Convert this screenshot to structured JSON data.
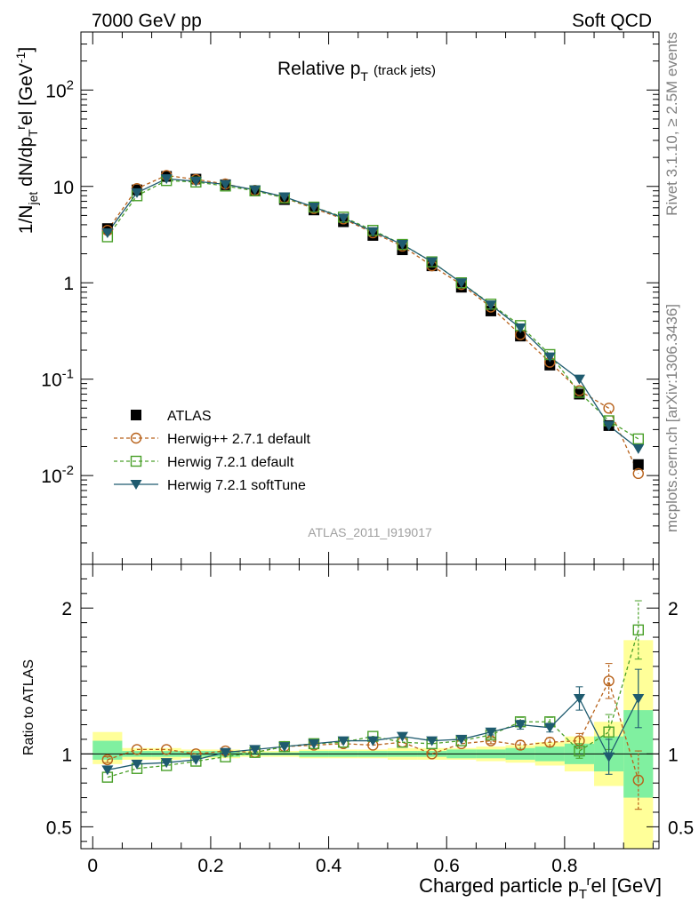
{
  "header": {
    "left": "7000 GeV pp",
    "right": "Soft QCD"
  },
  "side_labels": {
    "rivet": "Rivet 3.1.10, ≥ 2.5M events",
    "mcplots": "mcplots.cern.ch [arXiv:1306.3436]"
  },
  "chart_data": [
    {
      "type": "line",
      "title": "Relative p_T (track jets)",
      "title_main": "Relative p",
      "title_sub": "T",
      "title_suffix": "(track jets)",
      "ylabel": "1/N_jet dN/dp_T^rel [GeV^-1]",
      "xlabel": "Charged particle p_T^rel [GeV]",
      "analysis_id": "ATLAS_2011_I919017",
      "yscale": "log",
      "ylim": [
        0.0012,
        400
      ],
      "xlim": [
        -0.02,
        0.96
      ],
      "y_tick_labels": [
        "10^-2",
        "10^-1",
        "1",
        "10",
        "10^2"
      ],
      "legend_placement": "lower-left",
      "x": [
        0.025,
        0.075,
        0.125,
        0.175,
        0.225,
        0.275,
        0.325,
        0.375,
        0.425,
        0.475,
        0.525,
        0.575,
        0.625,
        0.675,
        0.725,
        0.775,
        0.825,
        0.875,
        0.925
      ],
      "series": [
        {
          "name": "ATLAS",
          "color": "#000000",
          "marker": "filled-square",
          "values": [
            3.65,
            9.2,
            12.7,
            11.9,
            10.4,
            9.0,
            7.3,
            5.7,
            4.3,
            3.1,
            2.2,
            1.5,
            0.9,
            0.51,
            0.28,
            0.14,
            0.07,
            0.033,
            0.013
          ]
        },
        {
          "name": "Herwig++ 2.7.1 default",
          "color": "#b8621b",
          "marker": "open-circle",
          "dash": true,
          "values": [
            3.5,
            9.5,
            13.0,
            11.8,
            10.6,
            9.1,
            7.6,
            5.9,
            4.6,
            3.3,
            2.4,
            1.5,
            0.96,
            0.56,
            0.29,
            0.15,
            0.076,
            0.05,
            0.0105
          ]
        },
        {
          "name": "Herwig 7.2.1 default",
          "color": "#4aa02a",
          "marker": "open-square",
          "dash": true,
          "values": [
            3.0,
            8.0,
            11.5,
            11.1,
            10.1,
            9.0,
            7.6,
            6.1,
            4.8,
            3.5,
            2.5,
            1.65,
            1.0,
            0.6,
            0.36,
            0.18,
            0.073,
            0.037,
            0.024
          ]
        },
        {
          "name": "Herwig 7.2.1 softTune",
          "color": "#1f5b6f",
          "marker": "filled-triangle-down",
          "dash": false,
          "values": [
            3.3,
            8.6,
            12.0,
            11.3,
            10.5,
            9.2,
            7.8,
            6.1,
            4.7,
            3.4,
            2.5,
            1.65,
            1.0,
            0.59,
            0.34,
            0.17,
            0.1,
            0.033,
            0.019
          ]
        }
      ]
    },
    {
      "type": "line",
      "ylabel": "Ratio to ATLAS",
      "xlabel": "Charged particle p_T^rel [GeV]",
      "ylim": [
        0.35,
        2.3
      ],
      "xlim": [
        -0.02,
        0.96
      ],
      "x_ticks": [
        0,
        0.2,
        0.4,
        0.6,
        0.8
      ],
      "x_tick_labels": [
        "0",
        "0.2",
        "0.4",
        "0.6",
        "0.8"
      ],
      "y_ticks": [
        0.5,
        1,
        2
      ],
      "y_tick_labels": [
        "0.5",
        "1",
        "2"
      ],
      "x": [
        0.025,
        0.075,
        0.125,
        0.175,
        0.225,
        0.275,
        0.325,
        0.375,
        0.425,
        0.475,
        0.525,
        0.575,
        0.625,
        0.675,
        0.725,
        0.775,
        0.825,
        0.875,
        0.925
      ],
      "bin_edges": [
        0.0,
        0.05,
        0.1,
        0.15,
        0.2,
        0.25,
        0.3,
        0.35,
        0.4,
        0.45,
        0.5,
        0.55,
        0.6,
        0.65,
        0.7,
        0.75,
        0.8,
        0.85,
        0.9,
        0.95
      ],
      "band_total": [
        [
          0.93,
          1.15
        ],
        [
          0.96,
          1.04
        ],
        [
          0.96,
          1.04
        ],
        [
          0.97,
          1.03
        ],
        [
          0.97,
          1.03
        ],
        [
          0.98,
          1.02
        ],
        [
          0.98,
          1.02
        ],
        [
          0.97,
          1.03
        ],
        [
          0.97,
          1.03
        ],
        [
          0.97,
          1.03
        ],
        [
          0.96,
          1.04
        ],
        [
          0.96,
          1.04
        ],
        [
          0.96,
          1.04
        ],
        [
          0.95,
          1.05
        ],
        [
          0.94,
          1.06
        ],
        [
          0.92,
          1.08
        ],
        [
          0.88,
          1.12
        ],
        [
          0.78,
          1.22
        ],
        [
          0.35,
          1.78
        ]
      ],
      "band_stat": [
        [
          0.96,
          1.09
        ],
        [
          0.98,
          1.02
        ],
        [
          0.98,
          1.02
        ],
        [
          0.98,
          1.02
        ],
        [
          0.98,
          1.02
        ],
        [
          0.99,
          1.01
        ],
        [
          0.99,
          1.01
        ],
        [
          0.98,
          1.02
        ],
        [
          0.98,
          1.02
        ],
        [
          0.98,
          1.02
        ],
        [
          0.98,
          1.02
        ],
        [
          0.98,
          1.02
        ],
        [
          0.97,
          1.03
        ],
        [
          0.97,
          1.03
        ],
        [
          0.96,
          1.04
        ],
        [
          0.95,
          1.05
        ],
        [
          0.93,
          1.07
        ],
        [
          0.88,
          1.12
        ],
        [
          0.7,
          1.3
        ]
      ],
      "series": [
        {
          "name": "Herwig++ 2.7.1 default",
          "color": "#b8621b",
          "marker": "open-circle",
          "dash": true,
          "values": [
            0.96,
            1.03,
            1.03,
            1.0,
            1.02,
            1.01,
            1.05,
            1.06,
            1.07,
            1.06,
            1.08,
            1.0,
            1.07,
            1.09,
            1.06,
            1.08,
            1.09,
            1.5,
            0.82
          ],
          "err": [
            0.02,
            0.01,
            0.01,
            0.01,
            0.01,
            0.01,
            0.01,
            0.01,
            0.01,
            0.01,
            0.01,
            0.01,
            0.01,
            0.02,
            0.03,
            0.03,
            0.05,
            0.12,
            0.2
          ]
        },
        {
          "name": "Herwig 7.2.1 default",
          "color": "#4aa02a",
          "marker": "open-square",
          "dash": true,
          "values": [
            0.84,
            0.9,
            0.92,
            0.95,
            0.98,
            1.01,
            1.05,
            1.07,
            1.08,
            1.12,
            1.08,
            1.07,
            1.09,
            1.13,
            1.22,
            1.22,
            1.02,
            1.15,
            1.85
          ],
          "err": [
            0.01,
            0.01,
            0.01,
            0.01,
            0.01,
            0.01,
            0.01,
            0.01,
            0.01,
            0.01,
            0.01,
            0.01,
            0.01,
            0.02,
            0.03,
            0.03,
            0.05,
            0.12,
            0.2
          ]
        },
        {
          "name": "Herwig 7.2.1 softTune",
          "color": "#1f5b6f",
          "marker": "filled-triangle-down",
          "dash": false,
          "values": [
            0.89,
            0.93,
            0.94,
            0.96,
            1.01,
            1.03,
            1.05,
            1.07,
            1.09,
            1.09,
            1.12,
            1.09,
            1.1,
            1.15,
            1.2,
            1.18,
            1.38,
            0.98,
            1.38
          ],
          "err": [
            0.01,
            0.01,
            0.01,
            0.01,
            0.01,
            0.01,
            0.01,
            0.01,
            0.01,
            0.01,
            0.01,
            0.01,
            0.01,
            0.02,
            0.03,
            0.03,
            0.08,
            0.12,
            0.2
          ]
        }
      ]
    }
  ]
}
